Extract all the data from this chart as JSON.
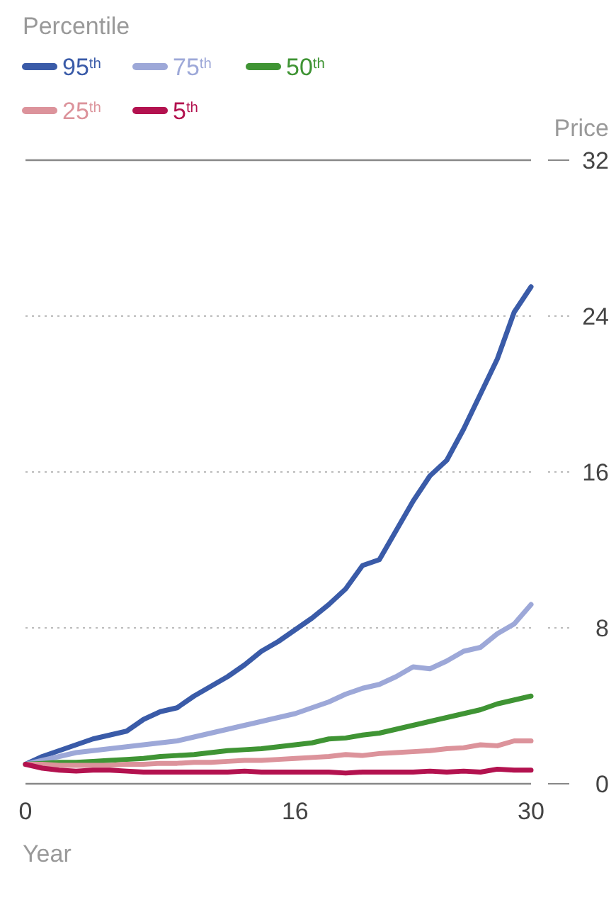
{
  "chart_data": {
    "type": "line",
    "legend_title": "Percentile",
    "ylabel": "Price",
    "xlabel": "Year",
    "x": [
      0,
      1,
      2,
      3,
      4,
      5,
      6,
      7,
      8,
      9,
      10,
      11,
      12,
      13,
      14,
      15,
      16,
      17,
      18,
      19,
      20,
      21,
      22,
      23,
      24,
      25,
      26,
      27,
      28,
      29,
      30
    ],
    "xlim": [
      0,
      30
    ],
    "xticks": [
      0,
      16,
      30
    ],
    "ylim": [
      0,
      32
    ],
    "yticks": [
      0,
      8,
      16,
      24,
      32
    ],
    "grid": "y",
    "legend": "top left",
    "marker": "none",
    "line_style": "solid",
    "series": [
      {
        "name": "95$^{th}$",
        "color": "#3a5ba8",
        "values": [
          1,
          1.4,
          1.7,
          2.0,
          2.3,
          2.5,
          2.7,
          3.3,
          3.7,
          3.9,
          4.5,
          5.0,
          5.5,
          6.1,
          6.8,
          7.3,
          7.9,
          8.5,
          9.2,
          10.0,
          11.2,
          11.5,
          13.0,
          14.5,
          15.8,
          16.6,
          18.2,
          20.0,
          21.8,
          24.2,
          25.5
        ]
      },
      {
        "name": "75$^{th}$",
        "color": "#9da8d8",
        "values": [
          1,
          1.2,
          1.4,
          1.6,
          1.7,
          1.8,
          1.9,
          2.0,
          2.1,
          2.2,
          2.4,
          2.6,
          2.8,
          3.0,
          3.2,
          3.4,
          3.6,
          3.9,
          4.2,
          4.6,
          4.9,
          5.1,
          5.5,
          6.0,
          5.9,
          6.3,
          6.8,
          7.0,
          7.7,
          8.2,
          9.2
        ]
      },
      {
        "name": "50$^{th}$",
        "color": "#3f9434",
        "values": [
          1,
          1.05,
          1.1,
          1.1,
          1.15,
          1.2,
          1.25,
          1.3,
          1.4,
          1.45,
          1.5,
          1.6,
          1.7,
          1.75,
          1.8,
          1.9,
          2.0,
          2.1,
          2.3,
          2.35,
          2.5,
          2.6,
          2.8,
          3.0,
          3.2,
          3.4,
          3.6,
          3.8,
          4.1,
          4.3,
          4.5
        ]
      },
      {
        "name": "25$^{th}$",
        "color": "#dc939b",
        "values": [
          1,
          1.0,
          0.95,
          0.95,
          0.95,
          0.95,
          1.0,
          1.0,
          1.05,
          1.05,
          1.1,
          1.1,
          1.15,
          1.2,
          1.2,
          1.25,
          1.3,
          1.35,
          1.4,
          1.5,
          1.45,
          1.55,
          1.6,
          1.65,
          1.7,
          1.8,
          1.85,
          2.0,
          1.95,
          2.2,
          2.2
        ]
      },
      {
        "name": "5$^{th}$",
        "color": "#b3124f",
        "values": [
          1,
          0.8,
          0.7,
          0.65,
          0.7,
          0.7,
          0.65,
          0.6,
          0.6,
          0.6,
          0.6,
          0.6,
          0.6,
          0.65,
          0.6,
          0.6,
          0.6,
          0.6,
          0.6,
          0.55,
          0.6,
          0.6,
          0.6,
          0.6,
          0.65,
          0.6,
          0.65,
          0.6,
          0.75,
          0.7,
          0.7
        ]
      }
    ]
  }
}
